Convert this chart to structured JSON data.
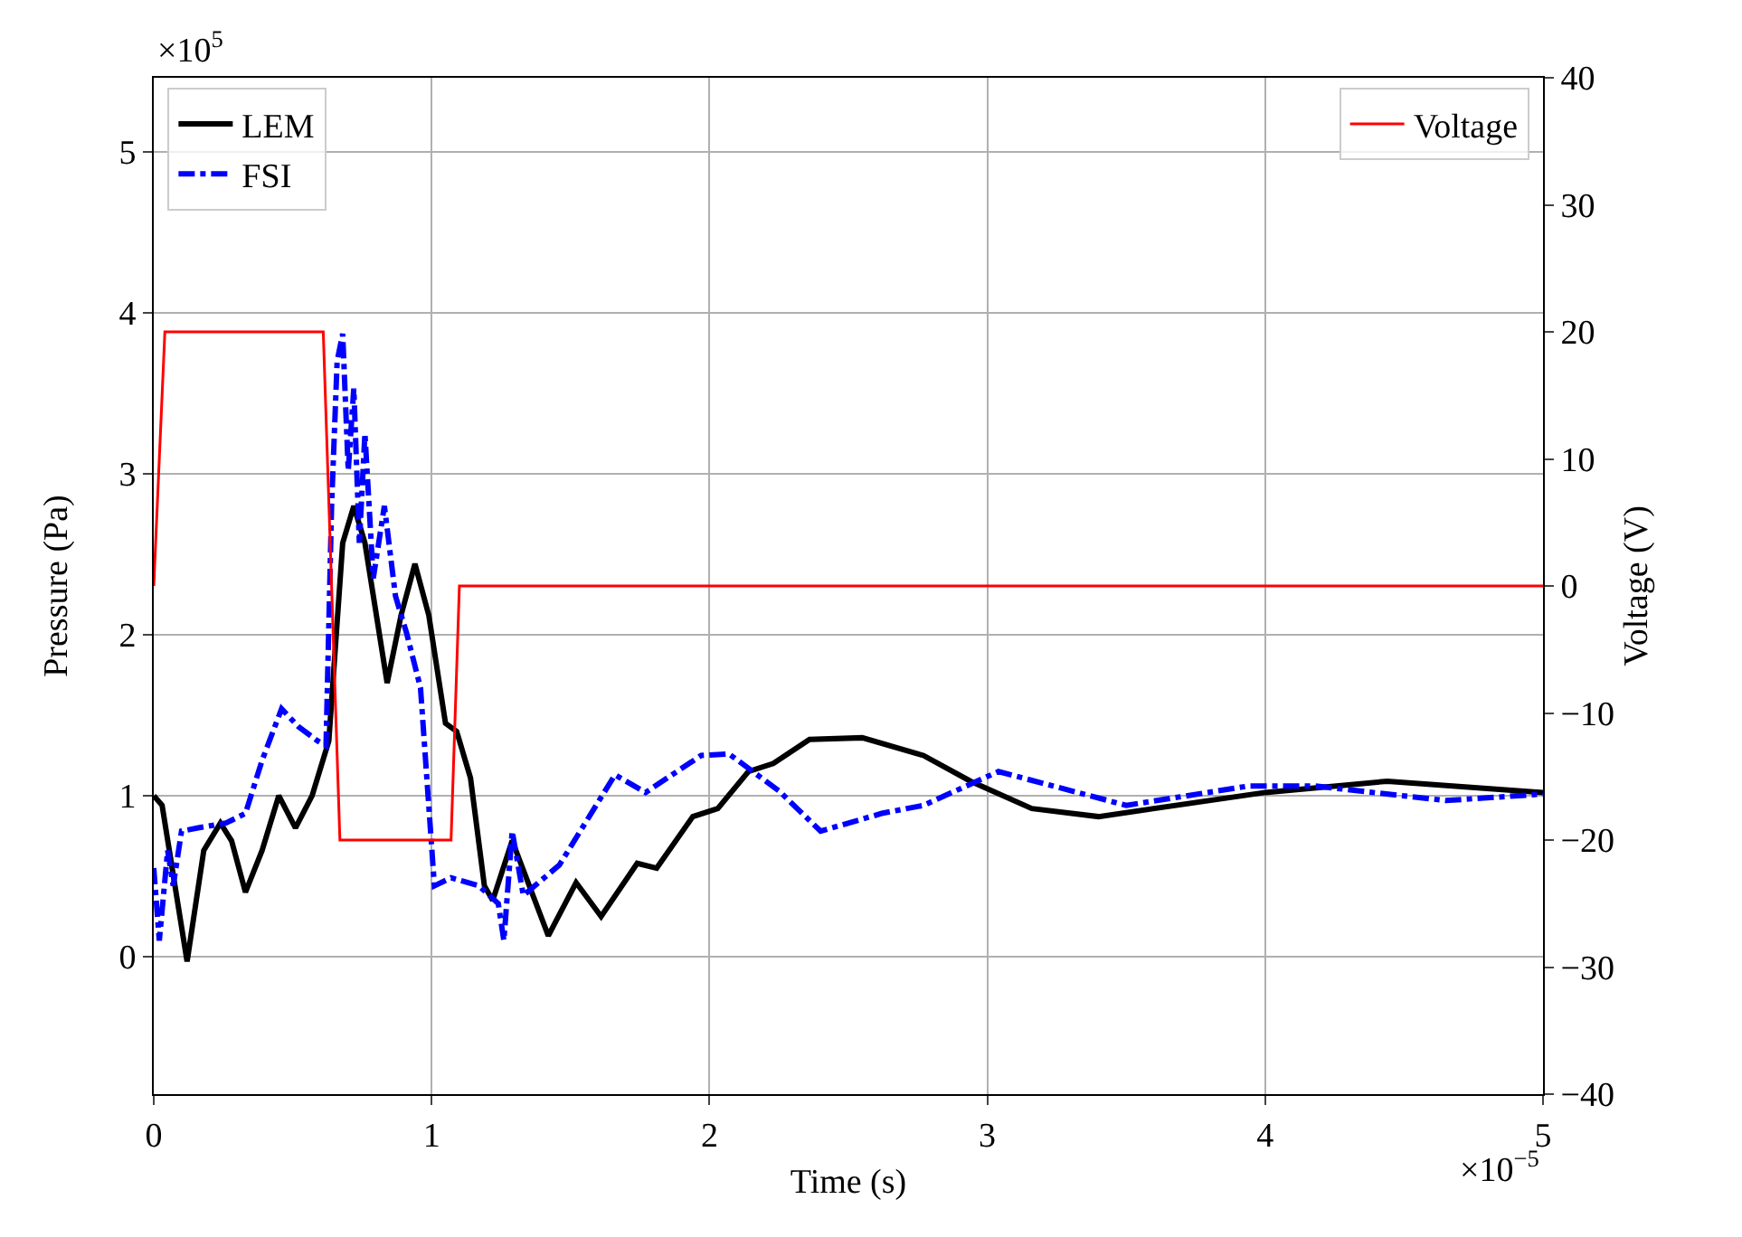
{
  "chart_data": {
    "type": "line",
    "xlabel": "Time (s)",
    "ylabel": "Pressure (Pa)",
    "y2label": "Voltage (V)",
    "xlim": [
      0,
      5
    ],
    "xticks": [
      0,
      1,
      2,
      3,
      4,
      5
    ],
    "ylim": [
      -0.854,
      5.46
    ],
    "yticks": [
      0,
      1,
      2,
      3,
      4,
      5
    ],
    "y2lim": [
      -40,
      40
    ],
    "y2ticks": [
      {
        "value": -40,
        "label": "−40"
      },
      {
        "value": -30,
        "label": "−30"
      },
      {
        "value": -20,
        "label": "−20"
      },
      {
        "value": -10,
        "label": "−10"
      },
      0,
      10,
      20,
      30,
      40
    ],
    "grid": true,
    "legend": "top left",
    "annotations": [
      "×10$^{5}$",
      "×10$^{−5}$"
    ],
    "series": [
      {
        "name": "LEM",
        "color": "#000000",
        "line_style": "solid",
        "x": [
          0,
          0.03,
          0.12,
          0.18,
          0.24,
          0.28,
          0.33,
          0.39,
          0.45,
          0.51,
          0.57,
          0.63,
          0.68,
          0.72,
          0.76,
          0.84,
          0.89,
          0.94,
          0.99,
          1.05,
          1.09,
          1.14,
          1.19,
          1.22,
          1.29,
          1.42,
          1.52,
          1.61,
          1.74,
          1.81,
          1.94,
          2.03,
          2.14,
          2.23,
          2.36,
          2.55,
          2.77,
          2.94,
          3.16,
          3.4,
          4.0,
          4.44,
          5.0
        ],
        "values": [
          1.0,
          0.94,
          -0.03,
          0.66,
          0.83,
          0.72,
          0.4,
          0.66,
          1.0,
          0.8,
          1.0,
          1.34,
          2.57,
          2.8,
          2.57,
          1.7,
          2.12,
          2.44,
          2.12,
          1.45,
          1.4,
          1.11,
          0.44,
          0.35,
          0.72,
          0.13,
          0.46,
          0.25,
          0.58,
          0.55,
          0.87,
          0.92,
          1.15,
          1.2,
          1.35,
          1.36,
          1.25,
          1.09,
          0.92,
          0.87,
          1.02,
          1.09,
          1.02
        ]
      },
      {
        "name": "FSI",
        "color": "#0000ff",
        "line_style": "dashdot",
        "x": [
          0,
          0.02,
          0.05,
          0.07,
          0.1,
          0.16,
          0.26,
          0.33,
          0.39,
          0.46,
          0.52,
          0.59,
          0.62,
          0.64,
          0.66,
          0.68,
          0.7,
          0.72,
          0.74,
          0.76,
          0.79,
          0.83,
          0.87,
          0.91,
          0.96,
          1.01,
          1.07,
          1.17,
          1.24,
          1.26,
          1.29,
          1.33,
          1.46,
          1.66,
          1.77,
          1.97,
          2.07,
          2.25,
          2.4,
          2.62,
          2.77,
          3.04,
          3.5,
          3.94,
          4.18,
          4.65,
          5.0
        ],
        "values": [
          0.55,
          0.1,
          0.66,
          0.44,
          0.78,
          0.8,
          0.83,
          0.89,
          1.22,
          1.54,
          1.43,
          1.34,
          1.31,
          2.8,
          3.7,
          3.87,
          3.02,
          3.53,
          2.57,
          3.25,
          2.35,
          2.8,
          2.24,
          2.01,
          1.67,
          0.44,
          0.49,
          0.44,
          0.33,
          0.1,
          0.78,
          0.38,
          0.57,
          1.13,
          1.02,
          1.25,
          1.26,
          1.03,
          0.78,
          0.89,
          0.94,
          1.15,
          0.94,
          1.06,
          1.06,
          0.97,
          1.01
        ]
      },
      {
        "name": "Voltage",
        "color": "#ff0000",
        "line_style": "solid",
        "axis": "y2",
        "x": [
          0,
          0.04,
          0.61,
          0.67,
          1.07,
          1.1,
          5
        ],
        "values": [
          0,
          20,
          20,
          -20,
          -20,
          0,
          0
        ]
      }
    ]
  }
}
